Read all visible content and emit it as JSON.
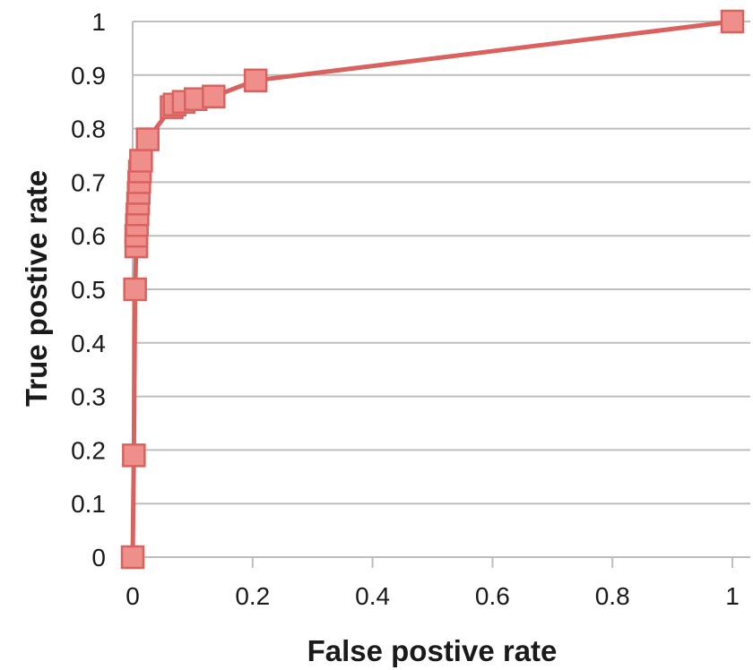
{
  "chart_data": {
    "type": "line",
    "title": "",
    "xlabel": "False postive rate",
    "ylabel": "True postive rate",
    "xlim": [
      0,
      1
    ],
    "ylim": [
      0,
      1
    ],
    "x_ticks": [
      "0",
      "0.2",
      "0.4",
      "0.6",
      "0.8",
      "1"
    ],
    "y_ticks": [
      "0",
      "0.1",
      "0.2",
      "0.3",
      "0.4",
      "0.5",
      "0.6",
      "0.7",
      "0.8",
      "0.9",
      "1"
    ],
    "grid": "horizontal",
    "legend": "none",
    "series": [
      {
        "color": "#d9625e",
        "marker": "square",
        "marker_fill": "#ef8f8c",
        "points": [
          {
            "x": 0.0,
            "y": 0.0
          },
          {
            "x": 0.002,
            "y": 0.19
          },
          {
            "x": 0.004,
            "y": 0.5
          },
          {
            "x": 0.006,
            "y": 0.58
          },
          {
            "x": 0.006,
            "y": 0.6
          },
          {
            "x": 0.007,
            "y": 0.62
          },
          {
            "x": 0.008,
            "y": 0.64
          },
          {
            "x": 0.009,
            "y": 0.66
          },
          {
            "x": 0.01,
            "y": 0.68
          },
          {
            "x": 0.011,
            "y": 0.7
          },
          {
            "x": 0.012,
            "y": 0.72
          },
          {
            "x": 0.014,
            "y": 0.74
          },
          {
            "x": 0.025,
            "y": 0.78
          },
          {
            "x": 0.065,
            "y": 0.84
          },
          {
            "x": 0.07,
            "y": 0.845
          },
          {
            "x": 0.085,
            "y": 0.85
          },
          {
            "x": 0.105,
            "y": 0.855
          },
          {
            "x": 0.135,
            "y": 0.86
          },
          {
            "x": 0.205,
            "y": 0.89
          },
          {
            "x": 1.0,
            "y": 1.0
          }
        ]
      }
    ]
  }
}
